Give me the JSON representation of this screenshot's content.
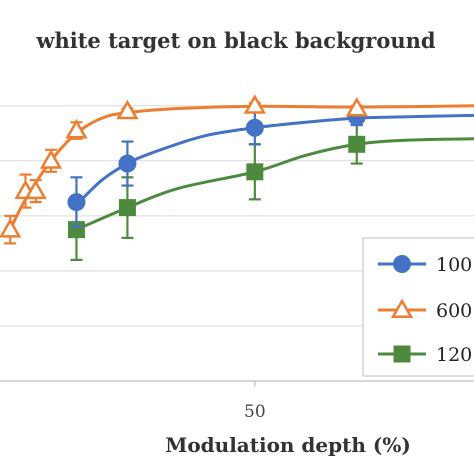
{
  "chart_data": {
    "type": "line",
    "title": "white target on black background",
    "xlabel": "Modulation depth (%)",
    "ylabel": "",
    "x_ticks": [
      50
    ],
    "xlim": [
      0,
      93
    ],
    "ylim": [
      0,
      1.05
    ],
    "y_gridlines": [
      0.2,
      0.4,
      0.6,
      0.8,
      1.0
    ],
    "grid": true,
    "legend_position": "right",
    "series": [
      {
        "name": "100",
        "color": "#4472C4",
        "marker": "circle",
        "points": [
          {
            "x": 15,
            "y": 0.65,
            "err": 0.09
          },
          {
            "x": 25,
            "y": 0.79,
            "err": 0.08
          },
          {
            "x": 50,
            "y": 0.92,
            "err": 0.06
          },
          {
            "x": 70,
            "y": 0.96,
            "err": 0.03
          }
        ],
        "curve": [
          [
            15,
            0.64
          ],
          [
            20,
            0.73
          ],
          [
            25,
            0.79
          ],
          [
            30,
            0.83
          ],
          [
            40,
            0.89
          ],
          [
            50,
            0.92
          ],
          [
            60,
            0.94
          ],
          [
            70,
            0.955
          ],
          [
            80,
            0.96
          ],
          [
            93,
            0.965
          ]
        ]
      },
      {
        "name": "600",
        "color": "#ED7D31",
        "marker": "triangle",
        "points": [
          {
            "x": 2,
            "y": 0.55,
            "err": 0.05
          },
          {
            "x": 5,
            "y": 0.69,
            "err": 0.06
          },
          {
            "x": 7,
            "y": 0.69,
            "err": 0.04
          },
          {
            "x": 10,
            "y": 0.8,
            "err": 0.04
          },
          {
            "x": 15,
            "y": 0.91,
            "err": 0.03
          },
          {
            "x": 25,
            "y": 0.98,
            "err": 0.01
          },
          {
            "x": 50,
            "y": 1.0,
            "err": 0.01
          },
          {
            "x": 70,
            "y": 0.99,
            "err": 0.01
          }
        ],
        "curve": [
          [
            2,
            0.55
          ],
          [
            5,
            0.66
          ],
          [
            10,
            0.8
          ],
          [
            15,
            0.9
          ],
          [
            20,
            0.955
          ],
          [
            25,
            0.975
          ],
          [
            35,
            0.99
          ],
          [
            50,
            0.998
          ],
          [
            70,
            0.995
          ],
          [
            93,
            1.0
          ]
        ]
      },
      {
        "name": "120",
        "color": "#4E8A3E",
        "marker": "square",
        "points": [
          {
            "x": 15,
            "y": 0.55,
            "err": 0.11
          },
          {
            "x": 25,
            "y": 0.63,
            "err": 0.11
          },
          {
            "x": 50,
            "y": 0.76,
            "err": 0.1
          },
          {
            "x": 70,
            "y": 0.86,
            "err": 0.07
          }
        ],
        "curve": [
          [
            15,
            0.55
          ],
          [
            25,
            0.63
          ],
          [
            35,
            0.7
          ],
          [
            50,
            0.76
          ],
          [
            60,
            0.82
          ],
          [
            70,
            0.86
          ],
          [
            80,
            0.875
          ],
          [
            93,
            0.88
          ]
        ]
      }
    ]
  }
}
